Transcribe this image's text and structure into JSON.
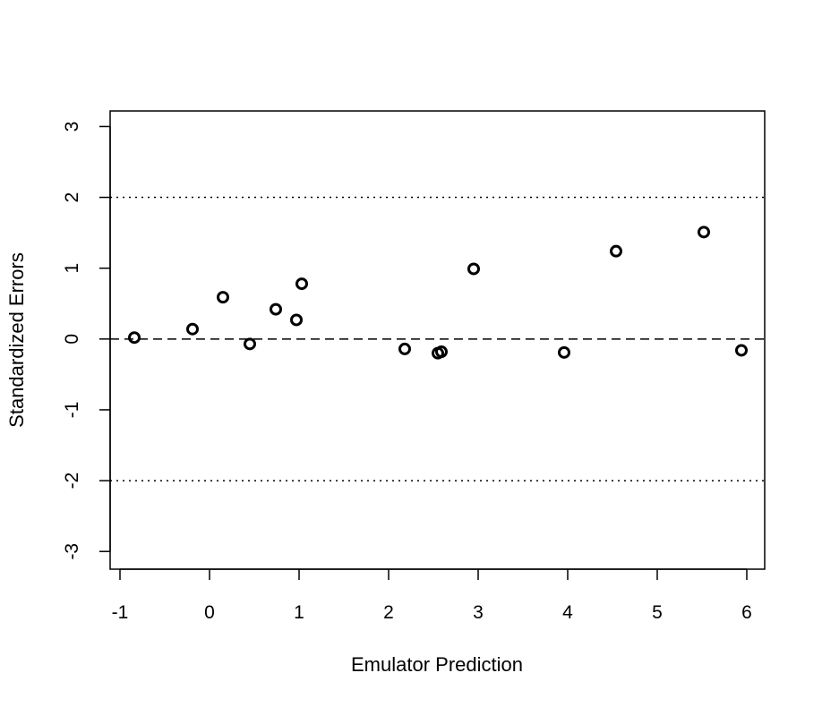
{
  "chart_data": {
    "type": "scatter",
    "title": "",
    "xlabel": "Emulator Prediction",
    "ylabel": "Standardized Errors",
    "xlim": [
      -1.11,
      6.2
    ],
    "ylim": [
      -3.25,
      3.22
    ],
    "xticks": [
      -1,
      0,
      1,
      2,
      3,
      4,
      5,
      6
    ],
    "yticks": [
      -3,
      -2,
      -1,
      0,
      1,
      2,
      3
    ],
    "grid": false,
    "reference_lines": [
      {
        "y": 0,
        "style": "dashed"
      },
      {
        "y": 2,
        "style": "dotted"
      },
      {
        "y": -2,
        "style": "dotted"
      }
    ],
    "points": [
      {
        "x": -0.84,
        "y": 0.02
      },
      {
        "x": -0.19,
        "y": 0.14
      },
      {
        "x": 0.15,
        "y": 0.59
      },
      {
        "x": 0.45,
        "y": -0.07
      },
      {
        "x": 0.74,
        "y": 0.42
      },
      {
        "x": 0.97,
        "y": 0.27
      },
      {
        "x": 1.03,
        "y": 0.78
      },
      {
        "x": 2.18,
        "y": -0.14
      },
      {
        "x": 2.55,
        "y": -0.2
      },
      {
        "x": 2.59,
        "y": -0.18
      },
      {
        "x": 2.95,
        "y": 0.99
      },
      {
        "x": 3.96,
        "y": -0.19
      },
      {
        "x": 4.54,
        "y": 1.24
      },
      {
        "x": 5.52,
        "y": 1.51
      },
      {
        "x": 5.94,
        "y": -0.16
      }
    ]
  }
}
